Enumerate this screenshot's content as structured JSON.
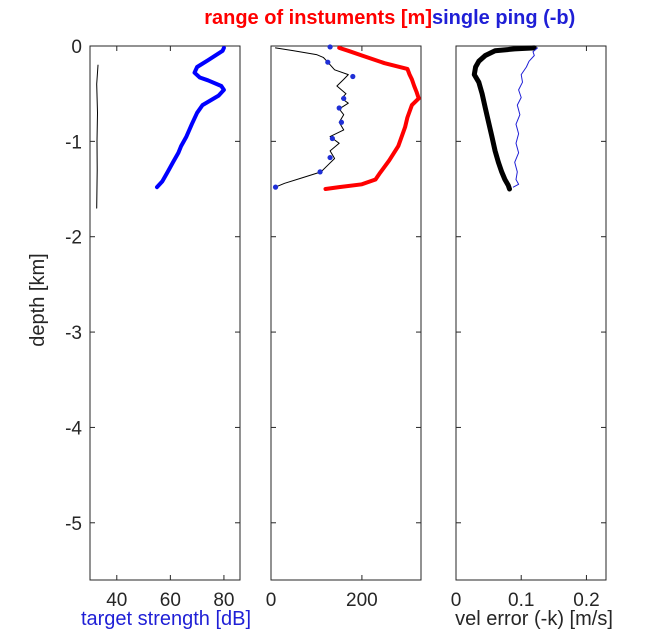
{
  "chart_data": [
    {
      "type": "line",
      "panel": "left",
      "ylabel": "depth [km]",
      "xlabel": "target strength [dB]",
      "xlim": [
        30,
        86
      ],
      "ylim": [
        -5.6,
        0
      ],
      "xticks": [
        "40",
        "60",
        "80"
      ],
      "xtick_values": [
        40,
        60,
        80
      ],
      "yticks": [
        "0",
        "-1",
        "-2",
        "-3",
        "-4",
        "-5"
      ],
      "ytick_values": [
        0,
        -1,
        -2,
        -3,
        -4,
        -5
      ],
      "grid": false,
      "series": [
        {
          "color": "#000000",
          "width": 1,
          "points": [
            [
              33,
              -0.2
            ],
            [
              32.5,
              -0.4
            ],
            [
              32.8,
              -0.7
            ],
            [
              32.6,
              -1.0
            ],
            [
              32.7,
              -1.3
            ],
            [
              32.5,
              -1.7
            ]
          ]
        },
        {
          "color": "#0000ff",
          "width": 4,
          "points": [
            [
              80,
              -0.02
            ],
            [
              79.5,
              -0.05
            ],
            [
              74,
              -0.15
            ],
            [
              70,
              -0.22
            ],
            [
              69,
              -0.28
            ],
            [
              71,
              -0.33
            ],
            [
              74,
              -0.36
            ],
            [
              79,
              -0.42
            ],
            [
              80,
              -0.46
            ],
            [
              78,
              -0.52
            ],
            [
              72,
              -0.62
            ],
            [
              70,
              -0.7
            ],
            [
              68,
              -0.82
            ],
            [
              66,
              -0.95
            ],
            [
              64,
              -1.05
            ],
            [
              63,
              -1.12
            ],
            [
              61,
              -1.22
            ],
            [
              59,
              -1.32
            ],
            [
              57,
              -1.42
            ],
            [
              55,
              -1.48
            ]
          ]
        }
      ]
    },
    {
      "type": "line",
      "panel": "middle",
      "title": "range of instuments [m]",
      "xlim": [
        0,
        330
      ],
      "ylim": [
        -5.6,
        0
      ],
      "xticks": [
        "0",
        "200"
      ],
      "xtick_values": [
        0,
        200
      ],
      "grid": false,
      "series": [
        {
          "color": "#ff0000",
          "width": 4,
          "points": [
            [
              150,
              -0.02
            ],
            [
              170,
              -0.05
            ],
            [
              200,
              -0.1
            ],
            [
              250,
              -0.18
            ],
            [
              300,
              -0.24
            ],
            [
              305,
              -0.3
            ],
            [
              310,
              -0.35
            ],
            [
              315,
              -0.42
            ],
            [
              320,
              -0.48
            ],
            [
              325,
              -0.55
            ],
            [
              310,
              -0.62
            ],
            [
              300,
              -0.75
            ],
            [
              295,
              -0.85
            ],
            [
              280,
              -1.05
            ],
            [
              260,
              -1.2
            ],
            [
              240,
              -1.33
            ],
            [
              230,
              -1.4
            ],
            [
              200,
              -1.45
            ],
            [
              150,
              -1.48
            ],
            [
              120,
              -1.5
            ]
          ]
        },
        {
          "color": "#000000",
          "width": 1,
          "points": [
            [
              10,
              -0.02
            ],
            [
              50,
              -0.05
            ],
            [
              100,
              -0.09
            ],
            [
              115,
              -0.12
            ],
            [
              125,
              -0.17
            ],
            [
              140,
              -0.25
            ],
            [
              170,
              -0.3
            ],
            [
              160,
              -0.35
            ],
            [
              145,
              -0.42
            ],
            [
              165,
              -0.5
            ],
            [
              155,
              -0.55
            ],
            [
              170,
              -0.6
            ],
            [
              150,
              -0.66
            ],
            [
              160,
              -0.72
            ],
            [
              150,
              -0.8
            ],
            [
              160,
              -0.88
            ],
            [
              130,
              -0.95
            ],
            [
              150,
              -1.02
            ],
            [
              130,
              -1.1
            ],
            [
              140,
              -1.18
            ],
            [
              125,
              -1.25
            ],
            [
              110,
              -1.32
            ],
            [
              70,
              -1.38
            ],
            [
              30,
              -1.44
            ],
            [
              10,
              -1.48
            ]
          ]
        }
      ],
      "markers": {
        "color": "#1f2fd6",
        "points": [
          [
            130,
            -0.01
          ],
          [
            125,
            -0.17
          ],
          [
            180,
            -0.32
          ],
          [
            160,
            -0.55
          ],
          [
            150,
            -0.65
          ],
          [
            155,
            -0.8
          ],
          [
            135,
            -0.97
          ],
          [
            130,
            -1.17
          ],
          [
            108,
            -1.32
          ],
          [
            10,
            -1.48
          ]
        ]
      }
    },
    {
      "type": "line",
      "panel": "right",
      "title": "single ping (-b)",
      "xlabel": "vel error (-k) [m/s]",
      "xlim": [
        0,
        0.23
      ],
      "ylim": [
        -5.6,
        0
      ],
      "xticks": [
        "0",
        "0.1",
        "0.2"
      ],
      "xtick_values": [
        0,
        0.1,
        0.2
      ],
      "grid": false,
      "series": [
        {
          "color": "#000000",
          "width": 5,
          "points": [
            [
              0.12,
              -0.02
            ],
            [
              0.09,
              -0.03
            ],
            [
              0.06,
              -0.05
            ],
            [
              0.045,
              -0.1
            ],
            [
              0.035,
              -0.16
            ],
            [
              0.03,
              -0.22
            ],
            [
              0.028,
              -0.3
            ],
            [
              0.035,
              -0.38
            ],
            [
              0.04,
              -0.5
            ],
            [
              0.045,
              -0.65
            ],
            [
              0.05,
              -0.8
            ],
            [
              0.055,
              -0.95
            ],
            [
              0.06,
              -1.1
            ],
            [
              0.065,
              -1.22
            ],
            [
              0.07,
              -1.32
            ],
            [
              0.075,
              -1.4
            ],
            [
              0.08,
              -1.46
            ],
            [
              0.082,
              -1.5
            ]
          ]
        },
        {
          "color": "#1f1fd6",
          "width": 1,
          "points": [
            [
              0.125,
              -0.02
            ],
            [
              0.118,
              -0.06
            ],
            [
              0.12,
              -0.1
            ],
            [
              0.112,
              -0.16
            ],
            [
              0.108,
              -0.22
            ],
            [
              0.1,
              -0.3
            ],
            [
              0.102,
              -0.38
            ],
            [
              0.096,
              -0.46
            ],
            [
              0.1,
              -0.54
            ],
            [
              0.094,
              -0.62
            ],
            [
              0.098,
              -0.72
            ],
            [
              0.092,
              -0.82
            ],
            [
              0.096,
              -0.92
            ],
            [
              0.092,
              -1.02
            ],
            [
              0.096,
              -1.12
            ],
            [
              0.09,
              -1.22
            ],
            [
              0.094,
              -1.32
            ],
            [
              0.092,
              -1.4
            ],
            [
              0.096,
              -1.45
            ],
            [
              0.088,
              -1.48
            ]
          ]
        }
      ]
    }
  ]
}
